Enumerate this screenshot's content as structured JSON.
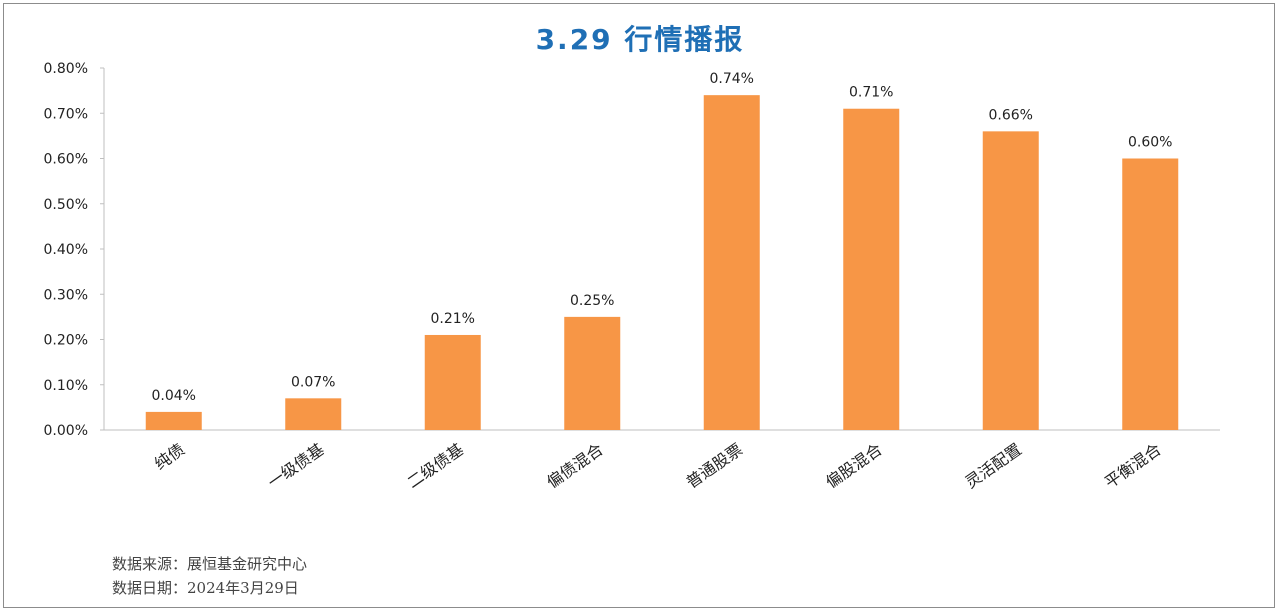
{
  "chart_data": {
    "type": "bar",
    "title": "3.29 行情播报",
    "categories": [
      "纯债",
      "一级债基",
      "二级债基",
      "偏债混合",
      "普通股票",
      "偏股混合",
      "灵活配置",
      "平衡混合"
    ],
    "values": [
      0.04,
      0.07,
      0.21,
      0.25,
      0.74,
      0.71,
      0.66,
      0.6
    ],
    "data_labels": [
      "0.04%",
      "0.07%",
      "0.21%",
      "0.25%",
      "0.74%",
      "0.71%",
      "0.66%",
      "0.60%"
    ],
    "yticks": [
      "0.00%",
      "0.10%",
      "0.20%",
      "0.30%",
      "0.40%",
      "0.50%",
      "0.60%",
      "0.70%",
      "0.80%"
    ],
    "ylim": [
      0,
      0.8
    ],
    "bar_color": "#f79646",
    "title_color": "#1f6fb5",
    "grid": false
  },
  "footer": {
    "source": "数据来源：展恒基金研究中心",
    "date": "数据日期：2024年3月29日"
  }
}
